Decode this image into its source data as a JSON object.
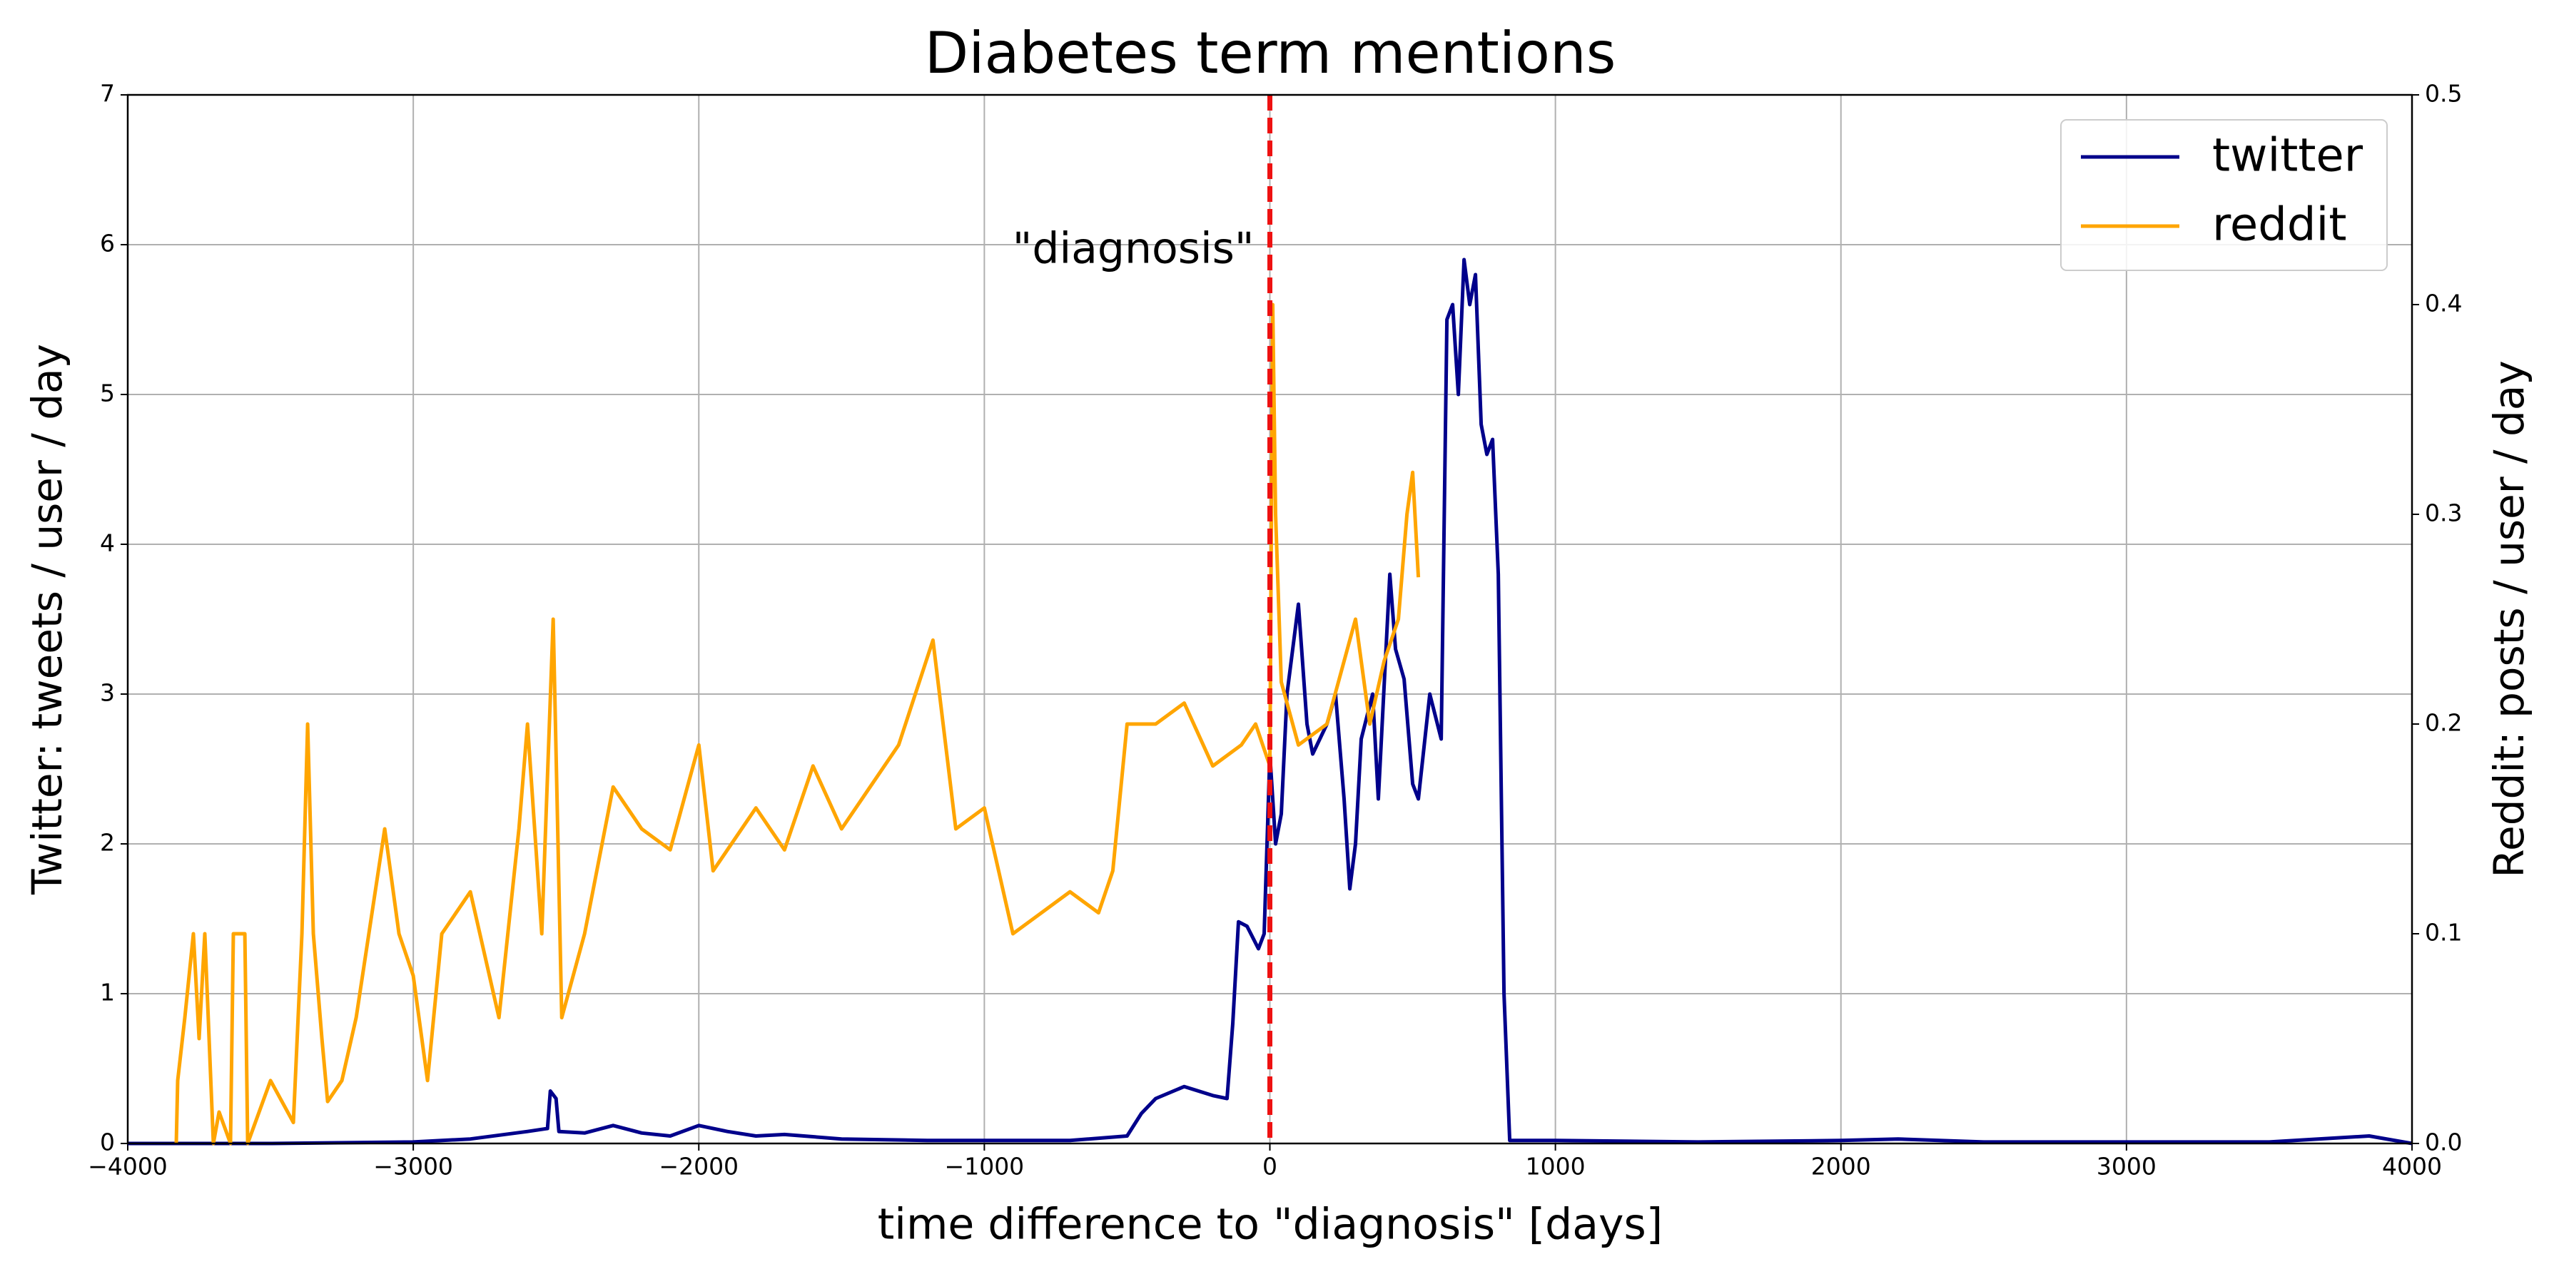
{
  "chart_data": {
    "type": "line",
    "title": "Diabetes term mentions",
    "xlabel": "time difference to \"diagnosis\" [days]",
    "ylabel": "Twitter: tweets / user / day",
    "y2label": "Reddit: posts / user / day",
    "annotation": "\"diagnosis\"",
    "vline": 0,
    "vline_color": "#ee1111",
    "grid": true,
    "legend": "upper right",
    "xlim": [
      -4000,
      4000
    ],
    "xticks": [
      {
        "value": -4000,
        "label": "−4000"
      },
      {
        "value": -3000,
        "label": "−3000"
      },
      {
        "value": -2000,
        "label": "−2000"
      },
      {
        "value": -1000,
        "label": "−1000"
      },
      0,
      1000,
      2000,
      3000,
      4000
    ],
    "ylim": [
      0,
      7
    ],
    "yticks": [
      0,
      1,
      2,
      3,
      4,
      5,
      6,
      7
    ],
    "y2lim": [
      0,
      0.5
    ],
    "y2ticks": [
      {
        "value": 0,
        "label": "0.0"
      },
      0.1,
      0.2,
      0.3,
      0.4,
      0.5
    ],
    "series": [
      {
        "name": "twitter",
        "color": "#00008b",
        "x": [
          -4000,
          -3500,
          -3000,
          -2800,
          -2600,
          -2530,
          -2520,
          -2500,
          -2490,
          -2400,
          -2300,
          -2200,
          -2100,
          -2000,
          -1900,
          -1800,
          -1700,
          -1500,
          -1200,
          -1000,
          -700,
          -500,
          -450,
          -400,
          -300,
          -200,
          -150,
          -130,
          -110,
          -80,
          -40,
          -20,
          0,
          20,
          40,
          60,
          100,
          130,
          150,
          200,
          230,
          260,
          280,
          300,
          320,
          360,
          380,
          420,
          440,
          470,
          500,
          520,
          560,
          600,
          620,
          640,
          660,
          680,
          700,
          720,
          740,
          760,
          780,
          800,
          820,
          840,
          1000,
          1500,
          2000,
          2200,
          2500,
          3000,
          3500,
          3850,
          4000
        ],
        "values": [
          0,
          0,
          0.01,
          0.03,
          0.08,
          0.1,
          0.35,
          0.3,
          0.08,
          0.07,
          0.12,
          0.07,
          0.05,
          0.12,
          0.08,
          0.05,
          0.06,
          0.03,
          0.02,
          0.02,
          0.02,
          0.05,
          0.2,
          0.3,
          0.38,
          0.32,
          0.3,
          0.8,
          1.48,
          1.45,
          1.3,
          1.4,
          2.6,
          2.0,
          2.2,
          3.0,
          3.6,
          2.8,
          2.6,
          2.8,
          3.0,
          2.3,
          1.7,
          2.0,
          2.7,
          3.0,
          2.3,
          3.8,
          3.3,
          3.1,
          2.4,
          2.3,
          3.0,
          2.7,
          5.5,
          5.6,
          5.0,
          5.9,
          5.6,
          5.8,
          4.8,
          4.6,
          4.7,
          3.8,
          1.0,
          0.02,
          0.02,
          0.01,
          0.02,
          0.03,
          0.01,
          0.01,
          0.01,
          0.05,
          0
        ]
      },
      {
        "name": "reddit",
        "color": "#ffa500",
        "axis": "y2",
        "x": [
          -3830,
          -3825,
          -3800,
          -3770,
          -3750,
          -3730,
          -3700,
          -3680,
          -3640,
          -3630,
          -3590,
          -3580,
          -3500,
          -3420,
          -3390,
          -3370,
          -3350,
          -3320,
          -3300,
          -3250,
          -3200,
          -3100,
          -3050,
          -3000,
          -2950,
          -2900,
          -2800,
          -2700,
          -2630,
          -2600,
          -2550,
          -2510,
          -2480,
          -2400,
          -2300,
          -2200,
          -2100,
          -2000,
          -1950,
          -1800,
          -1700,
          -1600,
          -1500,
          -1400,
          -1300,
          -1180,
          -1100,
          -1000,
          -950,
          -900,
          -800,
          -700,
          -600,
          -550,
          -500,
          -400,
          -300,
          -200,
          -100,
          -50,
          0,
          10,
          20,
          40,
          100,
          200,
          300,
          350,
          400,
          450,
          480,
          500,
          520
        ],
        "values": [
          0,
          0.03,
          0.06,
          0.1,
          0.05,
          0.1,
          0,
          0.015,
          0,
          0.1,
          0.1,
          0,
          0.03,
          0.01,
          0.1,
          0.2,
          0.1,
          0.05,
          0.02,
          0.03,
          0.06,
          0.15,
          0.1,
          0.08,
          0.03,
          0.1,
          0.12,
          0.06,
          0.15,
          0.2,
          0.1,
          0.25,
          0.06,
          0.1,
          0.17,
          0.15,
          0.14,
          0.19,
          0.13,
          0.16,
          0.14,
          0.18,
          0.15,
          0.17,
          0.19,
          0.24,
          0.15,
          0.16,
          0.13,
          0.1,
          0.11,
          0.12,
          0.11,
          0.13,
          0.2,
          0.2,
          0.21,
          0.18,
          0.19,
          0.2,
          0.18,
          0.4,
          0.3,
          0.22,
          0.19,
          0.2,
          0.25,
          0.2,
          0.23,
          0.25,
          0.3,
          0.32,
          0.27
        ]
      }
    ]
  }
}
